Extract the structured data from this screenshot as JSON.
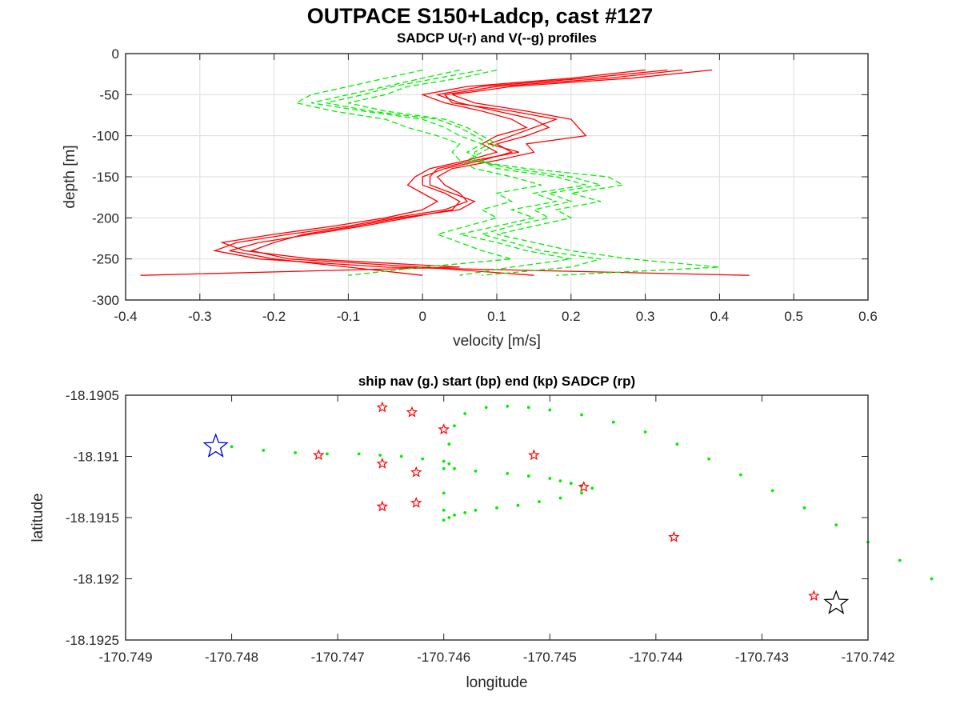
{
  "figure": {
    "title": "OUTPACE S150+Ladcp, cast #127"
  },
  "chart_data": [
    {
      "type": "line",
      "title": "SADCP U(-r) and V(--g) profiles",
      "xlabel": "velocity [m/s]",
      "ylabel": "depth [m]",
      "xlim": [
        -0.4,
        0.6
      ],
      "ylim": [
        -300,
        0
      ],
      "xticks": [
        -0.4,
        -0.3,
        -0.2,
        -0.1,
        0,
        0.1,
        0.2,
        0.3,
        0.4,
        0.5,
        0.6
      ],
      "xtick_labels": [
        "-0.4",
        "-0.3",
        "-0.2",
        "-0.1",
        "0",
        "0.1",
        "0.2",
        "0.3",
        "0.4",
        "0.5",
        "0.6"
      ],
      "yticks": [
        0,
        -50,
        -100,
        -150,
        -200,
        -250,
        -300
      ],
      "ytick_labels": [
        "0",
        "-50",
        "-100",
        "-150",
        "-200",
        "-250",
        "-300"
      ],
      "grid": true,
      "depth": [
        -20,
        -30,
        -40,
        -50,
        -60,
        -70,
        -80,
        -90,
        -100,
        -110,
        -120,
        -130,
        -140,
        -150,
        -160,
        -170,
        -180,
        -190,
        -200,
        -210,
        -220,
        -230,
        -240,
        -250,
        -260,
        -270
      ],
      "series": [
        {
          "line_style": "solid",
          "color": "#ff0000",
          "values": [
            0.33,
            0.22,
            0.08,
            0.02,
            0.05,
            0.1,
            0.15,
            0.17,
            0.14,
            0.1,
            0.12,
            0.08,
            0.03,
            0.0,
            0.0,
            0.03,
            0.05,
            0.04,
            -0.02,
            -0.08,
            -0.15,
            -0.22,
            -0.26,
            -0.2,
            -0.1,
            0.0
          ]
        },
        {
          "line_style": "solid",
          "color": "#ff0000",
          "values": [
            0.39,
            0.28,
            0.12,
            0.04,
            0.07,
            0.14,
            0.2,
            0.21,
            0.22,
            0.14,
            0.15,
            0.1,
            0.04,
            0.02,
            0.03,
            0.05,
            0.06,
            0.03,
            -0.04,
            -0.1,
            -0.18,
            -0.25,
            -0.28,
            -0.22,
            -0.05,
            0.44
          ]
        },
        {
          "line_style": "solid",
          "color": "#ff0000",
          "values": [
            0.3,
            0.2,
            0.06,
            0.0,
            0.03,
            0.08,
            0.12,
            0.14,
            0.1,
            0.08,
            0.1,
            0.06,
            0.01,
            -0.01,
            -0.02,
            0.0,
            0.02,
            0.0,
            -0.05,
            -0.12,
            -0.2,
            -0.27,
            -0.24,
            -0.15,
            0.05,
            -0.38
          ]
        },
        {
          "line_style": "solid",
          "color": "#ff0000",
          "values": [
            0.35,
            0.25,
            0.1,
            0.03,
            0.04,
            0.12,
            0.18,
            0.15,
            0.12,
            0.09,
            0.13,
            0.07,
            0.02,
            0.01,
            0.01,
            0.04,
            0.07,
            0.05,
            -0.03,
            -0.09,
            -0.16,
            -0.2,
            -0.23,
            -0.18,
            0.0,
            0.15
          ]
        },
        {
          "line_style": "dashed",
          "color": "#00ee00",
          "values": [
            0.05,
            0.0,
            -0.05,
            -0.1,
            -0.15,
            -0.08,
            0.0,
            0.03,
            0.05,
            0.08,
            0.06,
            0.08,
            0.1,
            0.18,
            0.22,
            0.15,
            0.18,
            0.12,
            0.15,
            0.1,
            0.05,
            0.1,
            0.14,
            0.2,
            0.12,
            0.05
          ]
        },
        {
          "line_style": "dashed",
          "color": "#00ee00",
          "values": [
            0.1,
            0.05,
            -0.02,
            -0.05,
            -0.1,
            -0.05,
            0.03,
            0.06,
            0.08,
            0.1,
            0.08,
            0.06,
            0.14,
            0.25,
            0.27,
            0.2,
            0.24,
            0.18,
            0.2,
            0.15,
            0.1,
            0.15,
            0.2,
            0.28,
            0.4,
            0.18
          ]
        },
        {
          "line_style": "dashed",
          "color": "#00ee00",
          "values": [
            0.0,
            -0.05,
            -0.1,
            -0.15,
            -0.17,
            -0.12,
            -0.05,
            -0.02,
            0.02,
            0.05,
            0.04,
            0.05,
            0.07,
            0.12,
            0.16,
            0.1,
            0.12,
            0.08,
            0.1,
            0.06,
            0.02,
            0.05,
            0.08,
            0.12,
            0.0,
            -0.1
          ]
        },
        {
          "line_style": "dashed",
          "color": "#00ee00",
          "values": [
            0.08,
            0.02,
            -0.04,
            -0.08,
            -0.13,
            -0.07,
            0.02,
            0.05,
            0.07,
            0.09,
            0.07,
            0.07,
            0.12,
            0.2,
            0.24,
            0.17,
            0.2,
            0.15,
            0.17,
            0.12,
            0.08,
            0.12,
            0.16,
            0.24,
            0.2,
            0.08
          ]
        }
      ]
    },
    {
      "type": "scatter",
      "title": "ship nav (g.) start (bp) end (kp) SADCP (rp)",
      "xlabel": "longitude",
      "ylabel": "latitude",
      "xlim": [
        -170.749,
        -170.742
      ],
      "ylim": [
        -18.1925,
        -18.1905
      ],
      "xticks": [
        -170.749,
        -170.748,
        -170.747,
        -170.746,
        -170.745,
        -170.744,
        -170.743,
        -170.742
      ],
      "xtick_labels": [
        "-170.749",
        "-170.748",
        "-170.747",
        "-170.746",
        "-170.745",
        "-170.744",
        "-170.743",
        "-170.742"
      ],
      "yticks": [
        -18.1905,
        -18.191,
        -18.1915,
        -18.192,
        -18.1925
      ],
      "ytick_labels": [
        "-18.1905",
        "-18.191",
        "-18.1915",
        "-18.192",
        "-18.1925"
      ],
      "grid": false,
      "ship_nav": {
        "color": "#00ee00",
        "lon": [
          -170.748,
          -170.7477,
          -170.7474,
          -170.7471,
          -170.7468,
          -170.7465,
          -170.7462,
          -170.7459,
          -170.7456,
          -170.7453,
          -170.745,
          -170.7447,
          -170.7444,
          -170.7441,
          -170.7438,
          -170.7435,
          -170.7432,
          -170.7429,
          -170.7426,
          -170.7423,
          -170.742,
          -170.7418,
          -170.7416,
          -170.7414,
          -170.7412,
          -170.741,
          -170.7408,
          -170.7406,
          -170.7404,
          -170.7402,
          -170.74,
          -170.7398,
          -170.7396,
          -170.7394,
          -170.7392,
          -170.739,
          -170.7388,
          -170.7386,
          -170.7384,
          -170.7382,
          -170.738,
          -170.7379,
          -170.7378,
          -170.7377,
          -170.7376,
          -170.7375,
          -170.7374,
          -170.7373,
          -170.7372,
          -170.7371,
          -170.737,
          -170.7369,
          -170.7368,
          -170.7367,
          -170.7366,
          -170.7365,
          -170.7364,
          -170.7363,
          -170.7362,
          -170.7361,
          -170.736,
          -170.7359,
          -170.7358,
          -170.7357,
          -170.7356,
          -170.7355,
          -170.7354,
          -170.7353,
          -170.7352,
          -170.7351,
          -170.735
        ],
        "lat": [
          -18.19092,
          -18.19093,
          -18.19094,
          -18.19095,
          -18.19096,
          -18.19097,
          -18.19098,
          -18.19099,
          -18.191,
          -18.19101,
          -18.19102,
          -18.19104,
          -18.19106,
          -18.19108,
          -18.1911,
          -18.19112,
          -18.19114,
          -18.19116,
          -18.19118,
          -18.1912,
          -18.19122,
          -18.19124,
          -18.19126,
          -18.19128,
          -18.1913,
          -18.19132,
          -18.19134,
          -18.19136,
          -18.19138,
          -18.1914,
          -18.19142,
          -18.19144,
          -18.19146,
          -18.19148,
          -18.1915,
          -18.19152,
          -18.19148,
          -18.19144,
          -18.1914,
          -18.19136,
          -18.19132,
          -18.19128,
          -18.19124,
          -18.1912,
          -18.19116,
          -18.19112,
          -18.19108,
          -18.19104,
          -18.191,
          -18.19096,
          -18.19092,
          -18.19088,
          -18.19084,
          -18.1908,
          -18.19076,
          -18.19072,
          -18.19068,
          -18.19064,
          -18.1906,
          -18.19058,
          -18.19059,
          -18.19061,
          -18.19063,
          -18.19066,
          -18.1907,
          -18.19075,
          -18.1908,
          -18.19085,
          -18.1909,
          -18.19095,
          -18.191
        ]
      },
      "nav_polyline": {
        "color": "#00ee00",
        "lon": [
          -170.748,
          -170.7477,
          -170.7474,
          -170.7471,
          -170.7468,
          -170.7466,
          -170.7464,
          -170.7462,
          -170.746,
          -170.74595,
          -170.7459,
          -170.7457,
          -170.7454,
          -170.7452,
          -170.745,
          -170.7449,
          -170.7448,
          -170.7447,
          -170.7446,
          -170.7447,
          -170.7449,
          -170.7451,
          -170.7453,
          -170.7455,
          -170.7457,
          -170.7458,
          -170.7459,
          -170.74595,
          -170.746,
          -170.746,
          -170.746,
          -170.746,
          -170.74595,
          -170.7459,
          -170.7458,
          -170.7456,
          -170.7454,
          -170.7452,
          -170.745,
          -170.7447,
          -170.7444,
          -170.7441,
          -170.7438,
          -170.7435,
          -170.7432,
          -170.7429,
          -170.7426,
          -170.7423,
          -170.742,
          -170.7417,
          -170.7414
        ],
        "lat": [
          -18.19092,
          -18.19095,
          -18.19097,
          -18.19098,
          -18.19098,
          -18.19099,
          -18.191,
          -18.19102,
          -18.19104,
          -18.19106,
          -18.1911,
          -18.19112,
          -18.19114,
          -18.19116,
          -18.19118,
          -18.1912,
          -18.19122,
          -18.19124,
          -18.19126,
          -18.1913,
          -18.19134,
          -18.19137,
          -18.1914,
          -18.19142,
          -18.19144,
          -18.19146,
          -18.19148,
          -18.1915,
          -18.19152,
          -18.19144,
          -18.1913,
          -18.1911,
          -18.1909,
          -18.19075,
          -18.19065,
          -18.1906,
          -18.19059,
          -18.1906,
          -18.19062,
          -18.19066,
          -18.19072,
          -18.1908,
          -18.1909,
          -18.19102,
          -18.19115,
          -18.19128,
          -18.19142,
          -18.19156,
          -18.1917,
          -18.19185,
          -18.192
        ]
      },
      "start": {
        "lon": -170.74815,
        "lat": -18.19092,
        "color": "#0000cc"
      },
      "end": {
        "lon": -170.7423,
        "lat": -18.1922,
        "color": "#000000"
      },
      "sadcp_points": {
        "color": "#ff0000",
        "lon": [
          -170.74718,
          -170.74658,
          -170.7463,
          -170.746,
          -170.74658,
          -170.74626,
          -170.74658,
          -170.74626,
          -170.74515,
          -170.74468,
          -170.74383,
          -170.74251
        ],
        "lat": [
          -18.19099,
          -18.1906,
          -18.19064,
          -18.19078,
          -18.19106,
          -18.19113,
          -18.19141,
          -18.19138,
          -18.19099,
          -18.19125,
          -18.19166,
          -18.19214
        ]
      }
    }
  ]
}
